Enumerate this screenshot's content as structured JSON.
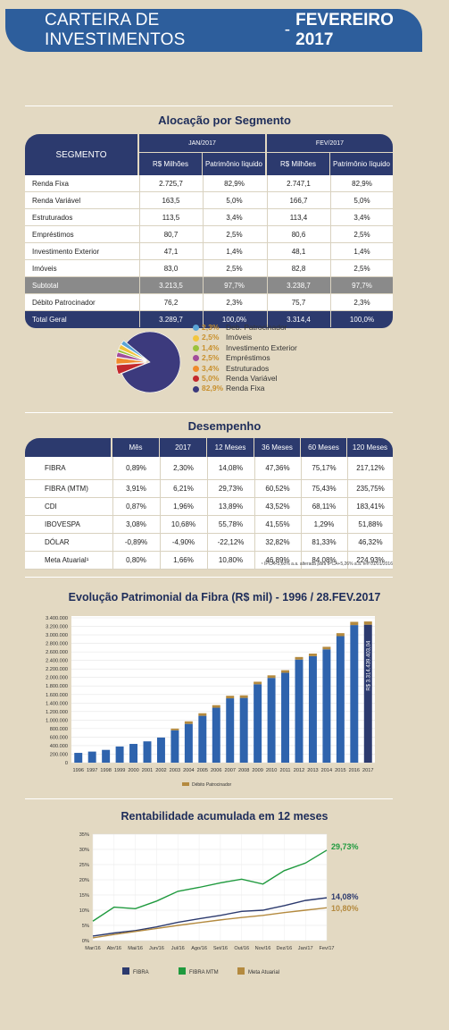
{
  "header": {
    "title": "CARTEIRA DE INVESTIMENTOS",
    "separator": "-",
    "period": "FEVEREIRO 2017"
  },
  "allocation": {
    "title": "Alocação por Segmento",
    "col_segment": "SEGMENTO",
    "period_1": "JAN/2017",
    "period_2": "FEV/2017",
    "col_rs": "R$ Milhões",
    "col_pl": "Patrimônio líquido",
    "rows": [
      {
        "label": "Renda Fixa",
        "jan_rs": "2.725,7",
        "jan_pl": "82,9%",
        "fev_rs": "2.747,1",
        "fev_pl": "82,9%"
      },
      {
        "label": "Renda Variável",
        "jan_rs": "163,5",
        "jan_pl": "5,0%",
        "fev_rs": "166,7",
        "fev_pl": "5,0%"
      },
      {
        "label": "Estruturados",
        "jan_rs": "113,5",
        "jan_pl": "3,4%",
        "fev_rs": "113,4",
        "fev_pl": "3,4%"
      },
      {
        "label": "Empréstimos",
        "jan_rs": "80,7",
        "jan_pl": "2,5%",
        "fev_rs": "80,6",
        "fev_pl": "2,5%"
      },
      {
        "label": "Investimento Exterior",
        "jan_rs": "47,1",
        "jan_pl": "1,4%",
        "fev_rs": "48,1",
        "fev_pl": "1,4%"
      },
      {
        "label": "Imóveis",
        "jan_rs": "83,0",
        "jan_pl": "2,5%",
        "fev_rs": "82,8",
        "fev_pl": "2,5%"
      },
      {
        "label": "Subtotal",
        "jan_rs": "3.213,5",
        "jan_pl": "97,7%",
        "fev_rs": "3.238,7",
        "fev_pl": "97,7%"
      },
      {
        "label": "Débito Patrocinador",
        "jan_rs": "76,2",
        "jan_pl": "2,3%",
        "fev_rs": "75,7",
        "fev_pl": "2,3%"
      },
      {
        "label": "Total Geral",
        "jan_rs": "3.289,7",
        "jan_pl": "100,0%",
        "fev_rs": "3.314,4",
        "fev_pl": "100,0%"
      }
    ],
    "pie_legend": [
      {
        "pct": "2,3%",
        "name": "Deb. Patrocinador",
        "value": 2.3,
        "color": "#5aa5d6"
      },
      {
        "pct": "2,5%",
        "name": "Imóveis",
        "value": 2.5,
        "color": "#f2c53d"
      },
      {
        "pct": "1,4%",
        "name": "Investimento Exterior",
        "value": 1.4,
        "color": "#9bc23c"
      },
      {
        "pct": "2,5%",
        "name": "Empréstimos",
        "value": 2.5,
        "color": "#a24c9b"
      },
      {
        "pct": "3,4%",
        "name": "Estruturados",
        "value": 3.4,
        "color": "#ef8a2c"
      },
      {
        "pct": "5,0%",
        "name": "Renda Variável",
        "value": 5.0,
        "color": "#c3282d"
      },
      {
        "pct": "82,9%",
        "name": "Renda Fixa",
        "value": 82.9,
        "color": "#3c3a7d"
      }
    ]
  },
  "performance": {
    "title": "Desempenho",
    "headers": [
      "",
      "Mês",
      "2017",
      "12 Meses",
      "36 Meses",
      "60 Meses",
      "120 Meses"
    ],
    "rows": [
      [
        "FIBRA",
        "0,89%",
        "2,30%",
        "14,08%",
        "47,36%",
        "75,17%",
        "217,12%"
      ],
      [
        "FIBRA (MTM)",
        "3,91%",
        "6,21%",
        "29,73%",
        "60,52%",
        "75,43%",
        "235,75%"
      ],
      [
        "CDI",
        "0,87%",
        "1,96%",
        "13,89%",
        "43,52%",
        "68,11%",
        "183,41%"
      ],
      [
        "IBOVESPA",
        "3,08%",
        "10,68%",
        "55,78%",
        "41,55%",
        "1,29%",
        "51,88%"
      ],
      [
        "DÓLAR",
        "-0,89%",
        "-4,90%",
        "-22,12%",
        "32,82%",
        "81,33%",
        "46,32%"
      ],
      [
        "Meta Atuarial¹",
        "0,80%",
        "1,66%",
        "10,80%",
        "46,89%",
        "84,08%",
        "224,93%"
      ]
    ],
    "footnote": "¹ IPCA+5,60% a.a. alterada para IPCA+5,26% a.a. em 01/01/2016"
  },
  "evolution": {
    "title": "Evolução Patrimonial da Fibra (R$ mil) - 1996 / 28.FEV.2017",
    "legend": "Débito Patrocinador",
    "end_label": "R$ 3.314.439.403,04",
    "colors": {
      "fibra": "#2e63ad",
      "debito": "#b48a3f"
    }
  },
  "rentab": {
    "title": "Rentabilidade acumulada em 12 meses",
    "end_labels": {
      "mtm": "29,73%",
      "fibra": "14,08%",
      "meta": "10,80%"
    },
    "colors": {
      "fibra": "#2c3a6e",
      "mtm": "#1f9a3e",
      "meta": "#b48a3f"
    }
  },
  "chart_data": [
    {
      "type": "bar",
      "title": "Evolução Patrimonial da Fibra (R$ mil) - 1996 / 28.FEV.2017",
      "categories": [
        "1996",
        "1997",
        "1998",
        "1999",
        "2000",
        "2001",
        "2002",
        "2003",
        "2004",
        "2005",
        "2006",
        "2007",
        "2008",
        "2009",
        "2010",
        "2011",
        "2012",
        "2013",
        "2014",
        "2015",
        "2016",
        "2017"
      ],
      "series": [
        {
          "name": "",
          "values": [
            230000,
            260000,
            300000,
            380000,
            440000,
            500000,
            590000,
            760000,
            910000,
            1100000,
            1290000,
            1510000,
            1520000,
            1840000,
            1990000,
            2110000,
            2420000,
            2500000,
            2660000,
            2970000,
            3230000,
            3238700
          ]
        },
        {
          "name": "Débito Patrocinador",
          "values": [
            0,
            0,
            0,
            0,
            0,
            0,
            0,
            40000,
            60000,
            60000,
            60000,
            60000,
            60000,
            60000,
            60000,
            60000,
            60000,
            60000,
            60000,
            70000,
            76000,
            75700
          ]
        }
      ],
      "yticks": [
        "0",
        "200.000",
        "400.000",
        "600.000",
        "800.000",
        "1.000.000",
        "1.200.000",
        "1.400.000",
        "1.600.000",
        "1.800.000",
        "2.000.000",
        "2.200.000",
        "2.400.000",
        "2.600.000",
        "2.800.000",
        "3.000.000",
        "3.200.000",
        "3.400.000"
      ],
      "ylim": [
        0,
        3400000
      ],
      "legend": "bottom"
    },
    {
      "type": "line",
      "title": "Rentabilidade acumulada em 12 meses",
      "categories": [
        "Mar/16",
        "Abr/16",
        "Mai/16",
        "Jun/16",
        "Jul/16",
        "Ago/16",
        "Set/16",
        "Out/16",
        "Nov/16",
        "Dez/16",
        "Jan/17",
        "Fev/17"
      ],
      "yticks": [
        "0%",
        "5%",
        "10%",
        "15%",
        "20%",
        "25%",
        "30%",
        "35%"
      ],
      "ylim": [
        0,
        35
      ],
      "series": [
        {
          "name": "FIBRA",
          "values": [
            1.5,
            2.5,
            3.3,
            4.5,
            6.0,
            7.2,
            8.3,
            9.6,
            10.0,
            11.5,
            13.2,
            14.08
          ]
        },
        {
          "name": "FIBRA MTM",
          "values": [
            6.4,
            11.0,
            10.5,
            13.0,
            16.2,
            17.5,
            19.0,
            20.2,
            18.6,
            23.0,
            25.5,
            29.73
          ]
        },
        {
          "name": "Meta Atuarial",
          "values": [
            0.9,
            2.0,
            3.0,
            4.0,
            5.0,
            5.9,
            6.8,
            7.6,
            8.3,
            9.2,
            10.0,
            10.8
          ]
        }
      ],
      "legend": "bottom"
    }
  ]
}
